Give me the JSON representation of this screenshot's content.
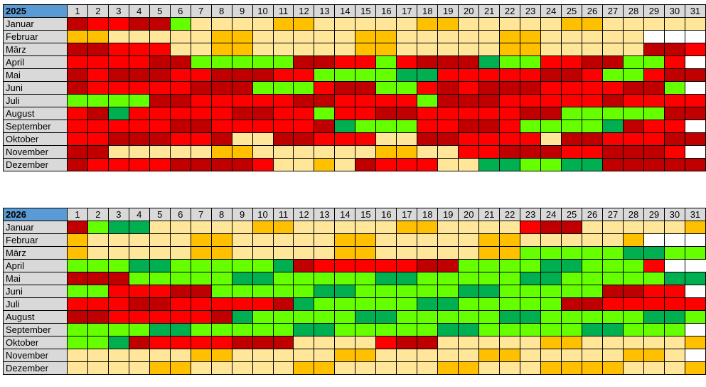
{
  "colors": {
    "D": "#c00000",
    "R": "#ff0000",
    "O": "#ffc000",
    "P": "#ffe699",
    "L": "#66ff00",
    "G": "#00b050",
    "W": "#ffffff"
  },
  "days": [
    "1",
    "2",
    "3",
    "4",
    "5",
    "6",
    "7",
    "8",
    "9",
    "10",
    "11",
    "12",
    "13",
    "14",
    "15",
    "16",
    "17",
    "18",
    "19",
    "20",
    "21",
    "22",
    "23",
    "24",
    "25",
    "26",
    "27",
    "28",
    "29",
    "30",
    "31"
  ],
  "tables": [
    {
      "year": "2025",
      "months": [
        {
          "name": "Januar",
          "cells": "DRRDDLPPPPOOPPPPPOOPPPPPOOPPPPP"
        },
        {
          "name": "Februar",
          "cells": "OOPPPPPOOPPPPPOOPPPPPOOPPPPPWWW"
        },
        {
          "name": "März",
          "cells": "DDRRRPPOOPPPPPOOPPPPPOOPPPPPDDR"
        },
        {
          "name": "April",
          "cells": "RRRRDDLLLLLDDRRLRDDDGLLRRDDLLRW"
        },
        {
          "name": "Mai",
          "cells": "DRDDDRRDDDRRLLLLGGRRRRRDDRLLRDD"
        },
        {
          "name": "Juni",
          "cells": "DRRRRRDDDLLLRDDLLRDRDDDRRRRDDLW"
        },
        {
          "name": "Juli",
          "cells": "LLLLDDRRRRRDDRRRRLDDDRRRRRDRRRR"
        },
        {
          "name": "August",
          "cells": "RDGRRRRRDDRRLRRDDRRRRRDDLLLLLDD"
        },
        {
          "name": "September",
          "cells": "RRRRRDDRRRRRDGLLLRRDDRLLLLGDRRW"
        },
        {
          "name": "Oktober",
          "cells": "RRDDDRRDPPDDRRRPPDDRRRRPDDRRRDD"
        },
        {
          "name": "November",
          "cells": "DDPPPPPOOPPPPPPOOPPRRDDDRRDDDRW"
        },
        {
          "name": "Dezember",
          "cells": "DRRRRDDDDRPPOPDRRRPPGGLLGGDDDDD"
        }
      ]
    },
    {
      "year": "2026",
      "months": [
        {
          "name": "Januar",
          "cells": "DLGGPPPPPOOPPPPPOOPPPPRDDPPPPPO"
        },
        {
          "name": "Februar",
          "cells": "OPPPPPOOPPPPPOOPPPPPOOPPPPPOWWW"
        },
        {
          "name": "März",
          "cells": "OPPPPPOOPPPPPOOPPPPPOOLLLLLGGLL"
        },
        {
          "name": "April",
          "cells": "LLLGGLLLLLGDRRRRRDDLLLLGGLLLRW"
        },
        {
          "name": "Mai",
          "cells": "DDDLLLLLGGLLLLLGGLLLLLGGLLLLLGG"
        },
        {
          "name": "Juni",
          "cells": "LLRRRDDLLLLLGGLLLLLGGLLLLLDDRRW"
        },
        {
          "name": "Juli",
          "cells": "RRRDDRRRRRDGLLLLLGGLLLLLDDRRRRR"
        },
        {
          "name": "August",
          "cells": "DDRRRRRDGLLLLLGGLLLLLGGLLLLLGGL"
        },
        {
          "name": "September",
          "cells": "LLLLGGLLLLLGGLLLLLGGLLLLLGGLLLW"
        },
        {
          "name": "Oktober",
          "cells": "LLGDRRRRDDDPPPPRDDPPPPPOOPPPPPO"
        },
        {
          "name": "November",
          "cells": "PPPPPPOOPPPPPOOPPPPPOOPPPPPOOPW"
        },
        {
          "name": "Dezember",
          "cells": "PPPPOOPPPPPOOPPPPPOOPPPOOOOPPPO"
        }
      ]
    }
  ]
}
